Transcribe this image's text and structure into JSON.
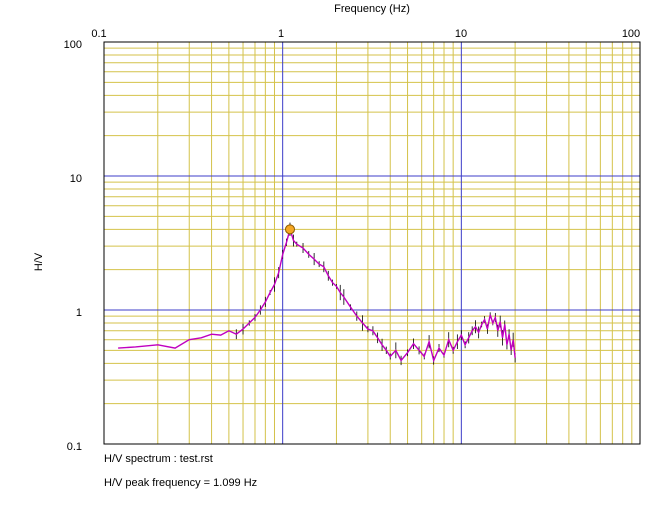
{
  "chart_data": {
    "type": "line",
    "title": "",
    "xlabel": "Frequency (Hz)",
    "ylabel": "H/V",
    "xscale": "log",
    "yscale": "log",
    "xlim": [
      0.1,
      100
    ],
    "ylim": [
      0.1,
      100
    ],
    "x_tick_labels": [
      "0.1",
      "1",
      "10",
      "100"
    ],
    "y_tick_labels": [
      "100",
      "10",
      "1",
      "0.1"
    ],
    "x_tick_values": [
      0.1,
      1,
      10,
      100
    ],
    "y_tick_values": [
      100,
      10,
      1,
      0.1
    ],
    "grid": true,
    "colors": {
      "minor_grid": "#d4c24a",
      "major_grid": "#3c3cc8",
      "series": "#c000c0",
      "errorbar": "#000000",
      "peak_marker_fill": "#f5a623",
      "peak_marker_stroke": "#8a5a00",
      "top_dashed_line": "#d040d0"
    },
    "series": [
      {
        "x": [
          0.12,
          0.15,
          0.2,
          0.25,
          0.3,
          0.35,
          0.4,
          0.45,
          0.5,
          0.55,
          0.6,
          0.65,
          0.7,
          0.75,
          0.8,
          0.85,
          0.9,
          0.95,
          1.0,
          1.05,
          1.099,
          1.15,
          1.2,
          1.3,
          1.4,
          1.5,
          1.6,
          1.7,
          1.8,
          1.9,
          2.0,
          2.1,
          2.2,
          2.4,
          2.6,
          2.8,
          3.0,
          3.2,
          3.4,
          3.6,
          3.8,
          4.0,
          4.3,
          4.6,
          5.0,
          5.4,
          5.8,
          6.2,
          6.6,
          7.0,
          7.5,
          8.0,
          8.5,
          9.0,
          9.5,
          10,
          10.5,
          11,
          11.5,
          12,
          12.5,
          13,
          13.5,
          14,
          14.5,
          15,
          15.5,
          16,
          16.5,
          17,
          17.5,
          18,
          18.5,
          19,
          19.5,
          20
        ],
        "y": [
          0.52,
          0.53,
          0.55,
          0.52,
          0.6,
          0.62,
          0.66,
          0.65,
          0.7,
          0.66,
          0.72,
          0.8,
          0.88,
          1.0,
          1.15,
          1.35,
          1.55,
          1.9,
          2.6,
          3.2,
          4.0,
          3.3,
          3.1,
          2.9,
          2.6,
          2.4,
          2.2,
          2.1,
          1.8,
          1.6,
          1.5,
          1.35,
          1.25,
          1.05,
          0.9,
          0.8,
          0.72,
          0.7,
          0.62,
          0.55,
          0.5,
          0.45,
          0.5,
          0.42,
          0.48,
          0.56,
          0.5,
          0.45,
          0.58,
          0.42,
          0.52,
          0.46,
          0.6,
          0.5,
          0.58,
          0.65,
          0.55,
          0.62,
          0.7,
          0.75,
          0.68,
          0.78,
          0.85,
          0.72,
          0.92,
          0.8,
          0.88,
          0.7,
          0.82,
          0.62,
          0.78,
          0.55,
          0.66,
          0.5,
          0.6,
          0.44
        ]
      }
    ],
    "peak": {
      "x": 1.099,
      "y": 4.0
    },
    "captions": {
      "line1": "H/V spectrum : test.rst",
      "line2": "H/V peak frequency = 1.099 Hz"
    }
  }
}
